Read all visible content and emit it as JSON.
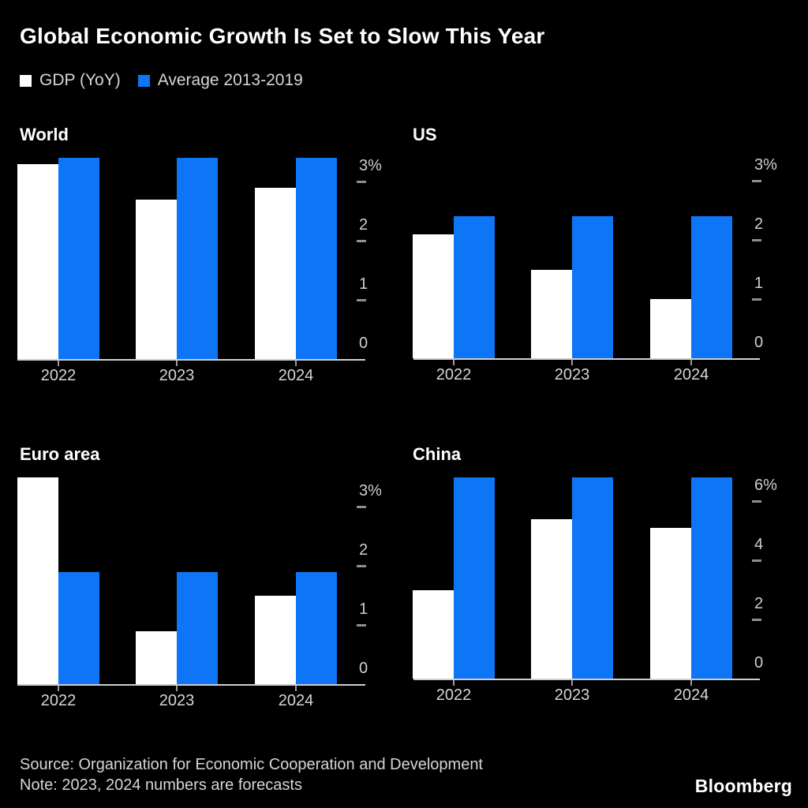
{
  "header": {
    "title": "Global Economic Growth Is Set to Slow This Year",
    "legend": [
      {
        "label": "GDP (YoY)",
        "color": "#ffffff"
      },
      {
        "label": "Average 2013-2019",
        "color": "#0e76f6"
      }
    ]
  },
  "colors": {
    "gdp_bar": "#ffffff",
    "average_bar": "#0e76f6",
    "axis_line": "#cfcfcf",
    "tick": "#8f8f8f",
    "text_muted": "#d6d6d6",
    "background": "#000000"
  },
  "chart_data": [
    {
      "type": "bar",
      "region": "World",
      "categories": [
        "2022",
        "2023",
        "2024"
      ],
      "series": [
        {
          "name": "GDP (YoY)",
          "values": [
            3.3,
            2.7,
            2.9
          ]
        },
        {
          "name": "Average 2013-2019",
          "values": [
            3.4,
            3.4,
            3.4
          ]
        }
      ],
      "ylim": [
        0,
        3.5
      ],
      "yticks": [
        0,
        1,
        2,
        3
      ],
      "ytick_top_suffix": "%",
      "grid": false,
      "legend_position": "top-left"
    },
    {
      "type": "bar",
      "region": "US",
      "categories": [
        "2022",
        "2023",
        "2024"
      ],
      "series": [
        {
          "name": "GDP (YoY)",
          "values": [
            2.1,
            1.5,
            1.0
          ]
        },
        {
          "name": "Average 2013-2019",
          "values": [
            2.4,
            2.4,
            2.4
          ]
        }
      ],
      "ylim": [
        0,
        3.5
      ],
      "yticks": [
        0,
        1,
        2,
        3
      ],
      "ytick_top_suffix": "%",
      "grid": false,
      "legend_position": "top-left"
    },
    {
      "type": "bar",
      "region": "Euro area",
      "categories": [
        "2022",
        "2023",
        "2024"
      ],
      "series": [
        {
          "name": "GDP (YoY)",
          "values": [
            3.5,
            0.9,
            1.5
          ]
        },
        {
          "name": "Average 2013-2019",
          "values": [
            1.9,
            1.9,
            1.9
          ]
        }
      ],
      "ylim": [
        0,
        3.6
      ],
      "yticks": [
        0,
        1,
        2,
        3
      ],
      "ytick_top_suffix": "%",
      "grid": false,
      "legend_position": "top-left"
    },
    {
      "type": "bar",
      "region": "China",
      "categories": [
        "2022",
        "2023",
        "2024"
      ],
      "series": [
        {
          "name": "GDP (YoY)",
          "values": [
            3.0,
            5.4,
            5.1
          ]
        },
        {
          "name": "Average 2013-2019",
          "values": [
            6.8,
            6.8,
            6.8
          ]
        }
      ],
      "ylim": [
        0,
        7.0
      ],
      "yticks": [
        0,
        2,
        4,
        6
      ],
      "ytick_top_suffix": "%",
      "grid": false,
      "legend_position": "top-left"
    }
  ],
  "footer": {
    "source": "Source: Organization for Economic Cooperation and Development",
    "note": "Note: 2023, 2024 numbers are forecasts",
    "brand": "Bloomberg"
  }
}
